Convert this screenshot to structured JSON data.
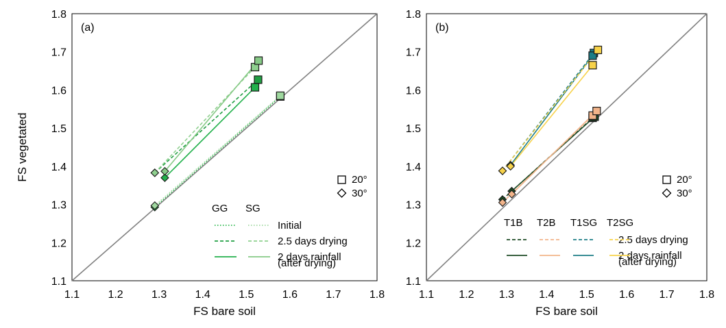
{
  "chart_data": [
    {
      "panel": "a",
      "panel_label": "(a)",
      "type": "scatter",
      "xlabel": "FS bare soil",
      "ylabel": "FS vegetated",
      "xlim": [
        1.1,
        1.8
      ],
      "ylim": [
        1.1,
        1.8
      ],
      "xticks": [
        "1.1",
        "1.2",
        "1.3",
        "1.4",
        "1.5",
        "1.6",
        "1.7",
        "1.8"
      ],
      "yticks": [
        "1.1",
        "1.2",
        "1.3",
        "1.4",
        "1.5",
        "1.6",
        "1.7",
        "1.8"
      ],
      "reference_line": "1:1",
      "marker_legend": [
        {
          "marker": "square",
          "label": "20°"
        },
        {
          "marker": "diamond",
          "label": "30°"
        }
      ],
      "legend_columns": [
        "GG",
        "SG"
      ],
      "legend_rows": [
        {
          "label": "Initial",
          "dash": "dotted"
        },
        {
          "label": "2.5 days drying",
          "dash": "dashed"
        },
        {
          "label": "2 days rainfall",
          "dash": "solid"
        },
        {
          "label": "(after drying)",
          "dash": "none"
        }
      ],
      "series": [
        {
          "group": "GG",
          "condition": "Initial",
          "color": "#2db84d",
          "dash": "dotted",
          "points": [
            {
              "x": 1.29,
              "y": 1.293,
              "marker": "diamond"
            },
            {
              "x": 1.578,
              "y": 1.583,
              "marker": "square"
            }
          ]
        },
        {
          "group": "GG",
          "condition": "2.5 days drying",
          "color": "#1f9e42",
          "dash": "dashed",
          "points": [
            {
              "x": 1.29,
              "y": 1.383,
              "marker": "diamond"
            },
            {
              "x": 1.527,
              "y": 1.627,
              "marker": "square"
            }
          ]
        },
        {
          "group": "GG",
          "condition": "2 days rainfall",
          "color": "#22b14c",
          "dash": "solid",
          "points": [
            {
              "x": 1.313,
              "y": 1.37,
              "marker": "diamond"
            },
            {
              "x": 1.52,
              "y": 1.607,
              "marker": "square"
            }
          ]
        },
        {
          "group": "SG",
          "condition": "Initial",
          "color": "#9fd89f",
          "dash": "dotted",
          "points": [
            {
              "x": 1.29,
              "y": 1.297,
              "marker": "diamond"
            },
            {
              "x": 1.578,
              "y": 1.585,
              "marker": "square"
            }
          ]
        },
        {
          "group": "SG",
          "condition": "2.5 days drying",
          "color": "#8fd08f",
          "dash": "dashed",
          "points": [
            {
              "x": 1.29,
              "y": 1.383,
              "marker": "diamond"
            },
            {
              "x": 1.52,
              "y": 1.66,
              "marker": "square"
            }
          ]
        },
        {
          "group": "SG",
          "condition": "2 days rainfall",
          "color": "#86c986",
          "dash": "solid",
          "points": [
            {
              "x": 1.313,
              "y": 1.387,
              "marker": "diamond"
            },
            {
              "x": 1.528,
              "y": 1.677,
              "marker": "square"
            }
          ]
        }
      ]
    },
    {
      "panel": "b",
      "panel_label": "(b)",
      "type": "scatter",
      "xlabel": "FS bare soil",
      "ylabel": "",
      "xlim": [
        1.1,
        1.8
      ],
      "ylim": [
        1.1,
        1.8
      ],
      "xticks": [
        "1.1",
        "1.2",
        "1.3",
        "1.4",
        "1.5",
        "1.6",
        "1.7",
        "1.8"
      ],
      "yticks": [
        "1.1",
        "1.2",
        "1.3",
        "1.4",
        "1.5",
        "1.6",
        "1.7",
        "1.8"
      ],
      "reference_line": "1:1",
      "marker_legend": [
        {
          "marker": "square",
          "label": "20°"
        },
        {
          "marker": "diamond",
          "label": "30°"
        }
      ],
      "legend_columns": [
        "T1B",
        "T2B",
        "T1SG",
        "T2SG"
      ],
      "legend_rows": [
        {
          "label": "2.5 days drying",
          "dash": "dashed"
        },
        {
          "label": "2 days rainfall",
          "dash": "solid"
        },
        {
          "label": "(after drying)",
          "dash": "none"
        }
      ],
      "series": [
        {
          "group": "T1B",
          "condition": "2.5 days drying",
          "color": "#1d4a24",
          "dash": "dashed",
          "points": [
            {
              "x": 1.29,
              "y": 1.313,
              "marker": "diamond"
            },
            {
              "x": 1.515,
              "y": 1.527,
              "marker": "square"
            }
          ]
        },
        {
          "group": "T1B",
          "condition": "2 days rainfall",
          "color": "#1d4a24",
          "dash": "solid",
          "points": [
            {
              "x": 1.313,
              "y": 1.335,
              "marker": "diamond"
            },
            {
              "x": 1.52,
              "y": 1.53,
              "marker": "square"
            }
          ]
        },
        {
          "group": "T2B",
          "condition": "2.5 days drying",
          "color": "#f2b48a",
          "dash": "dashed",
          "points": [
            {
              "x": 1.29,
              "y": 1.305,
              "marker": "diamond"
            },
            {
              "x": 1.515,
              "y": 1.533,
              "marker": "square"
            }
          ]
        },
        {
          "group": "T2B",
          "condition": "2 days rainfall",
          "color": "#f2b48a",
          "dash": "solid",
          "points": [
            {
              "x": 1.313,
              "y": 1.327,
              "marker": "diamond"
            },
            {
              "x": 1.525,
              "y": 1.545,
              "marker": "square"
            }
          ]
        },
        {
          "group": "T1SG",
          "condition": "2.5 days drying",
          "color": "#1d7d86",
          "dash": "dashed",
          "points": [
            {
              "x": 1.29,
              "y": 1.388,
              "marker": "diamond"
            },
            {
              "x": 1.518,
              "y": 1.697,
              "marker": "square"
            }
          ]
        },
        {
          "group": "T1SG",
          "condition": "2 days rainfall",
          "color": "#1d7d86",
          "dash": "solid",
          "points": [
            {
              "x": 1.31,
              "y": 1.403,
              "marker": "diamond"
            },
            {
              "x": 1.515,
              "y": 1.69,
              "marker": "square"
            }
          ]
        },
        {
          "group": "T2SG",
          "condition": "2.5 days drying",
          "color": "#f7d24a",
          "dash": "dashed",
          "points": [
            {
              "x": 1.29,
              "y": 1.388,
              "marker": "diamond"
            },
            {
              "x": 1.528,
              "y": 1.705,
              "marker": "square"
            }
          ]
        },
        {
          "group": "T2SG",
          "condition": "2 days rainfall",
          "color": "#f7d24a",
          "dash": "solid",
          "points": [
            {
              "x": 1.31,
              "y": 1.4,
              "marker": "diamond"
            },
            {
              "x": 1.515,
              "y": 1.665,
              "marker": "square"
            }
          ]
        }
      ]
    }
  ]
}
